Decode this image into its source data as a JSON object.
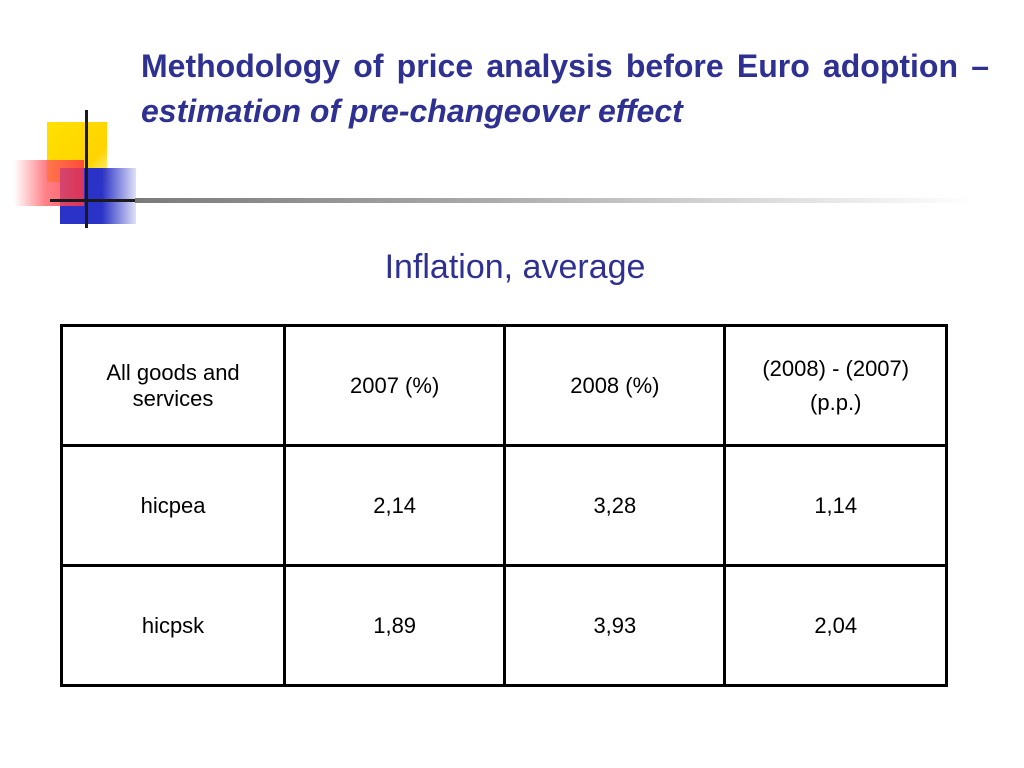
{
  "slide": {
    "title_part1": "Methodology of price analysis before Euro adoption – ",
    "title_part2": "estimation of pre-changeover effect",
    "subtitle": "Inflation, average"
  },
  "table": {
    "headers": [
      "All goods and services",
      "2007 (%)",
      "2008 (%)",
      "(2008) - (2007)",
      "(p.p.)"
    ],
    "rows": [
      {
        "label": "hicpea",
        "v2007": "2,14",
        "v2008": "3,28",
        "diff": "1,14"
      },
      {
        "label": "hicpsk",
        "v2007": "1,89",
        "v2008": "3,93",
        "diff": "2,04"
      }
    ]
  },
  "colors": {
    "title": "#2e3192",
    "logo_yellow": "#ffe100",
    "logo_blue": "#2a32c8",
    "logo_red": "#ff3344"
  }
}
